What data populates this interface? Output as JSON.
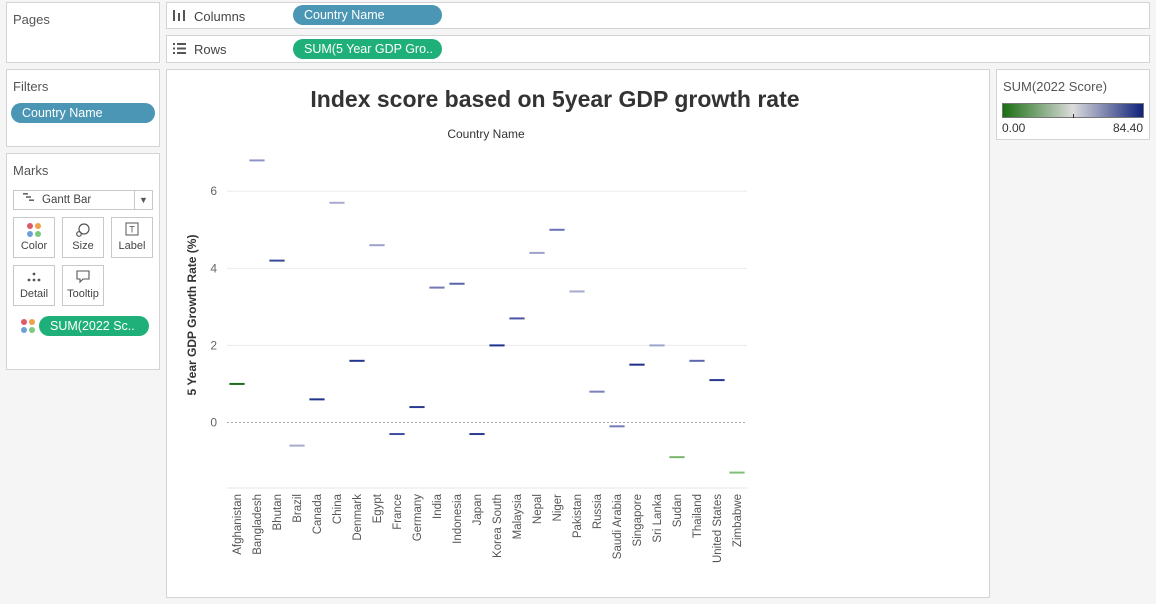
{
  "pages": {
    "title": "Pages"
  },
  "columns_shelf": {
    "label": "Columns",
    "icon": "columns-icon",
    "pill": "Country Name"
  },
  "rows_shelf": {
    "label": "Rows",
    "icon": "rows-icon",
    "pill": "SUM(5 Year GDP Gro.."
  },
  "filters": {
    "title": "Filters",
    "pill": "Country Name"
  },
  "marks": {
    "title": "Marks",
    "mark_type": "Gantt Bar",
    "buttons": {
      "color": "Color",
      "size": "Size",
      "label": "Label",
      "detail": "Detail",
      "tooltip": "Tooltip"
    },
    "color_pill": "SUM(2022 Sc.."
  },
  "legend": {
    "title": "SUM(2022 Score)",
    "min_label": "0.00",
    "max_label": "84.40",
    "colors": [
      "#1a6e12",
      "#dcdcdc",
      "#10217a"
    ]
  },
  "chart_data": {
    "type": "gantt",
    "title": "Index score based on 5year GDP growth rate",
    "xlabel": "Country Name",
    "ylabel": "5 Year GDP Growth Rate (%)",
    "ylim": [
      -1.7,
      7.2
    ],
    "yticks": [
      0,
      2,
      4,
      6
    ],
    "categories": [
      "Afghanistan",
      "Bangladesh",
      "Bhutan",
      "Brazil",
      "Canada",
      "China",
      "Denmark",
      "Egypt",
      "France",
      "Germany",
      "India",
      "Indonesia",
      "Japan",
      "Korea South",
      "Malaysia",
      "Nepal",
      "Niger",
      "Pakistan",
      "Russia",
      "Saudi Arabia",
      "Singapore",
      "Sri Lanka",
      "Sudan",
      "Thailand",
      "United States",
      "Zimbabwe"
    ],
    "values": [
      1.0,
      6.8,
      4.2,
      -0.6,
      0.6,
      5.7,
      1.6,
      4.6,
      -0.3,
      0.4,
      3.5,
      3.6,
      -0.3,
      2.0,
      2.7,
      4.4,
      5.0,
      3.4,
      0.8,
      -0.1,
      1.5,
      2.0,
      -0.9,
      1.6,
      1.1,
      -1.3
    ],
    "colors": [
      "#1d6e1b",
      "#8e92c8",
      "#3a4a96",
      "#a6aad0",
      "#21348c",
      "#a8accf",
      "#24368e",
      "#9da1ca",
      "#3d4da0",
      "#2a3b8f",
      "#7378b6",
      "#5a64aa",
      "#2a3b8f",
      "#1f328d",
      "#4b55a3",
      "#9ea2cb",
      "#6b72b5",
      "#a6aace",
      "#7b81bb",
      "#747bb8",
      "#1f2f88",
      "#9ea3cd",
      "#79b56c",
      "#5d67ad",
      "#27388e",
      "#7fbe76"
    ]
  }
}
